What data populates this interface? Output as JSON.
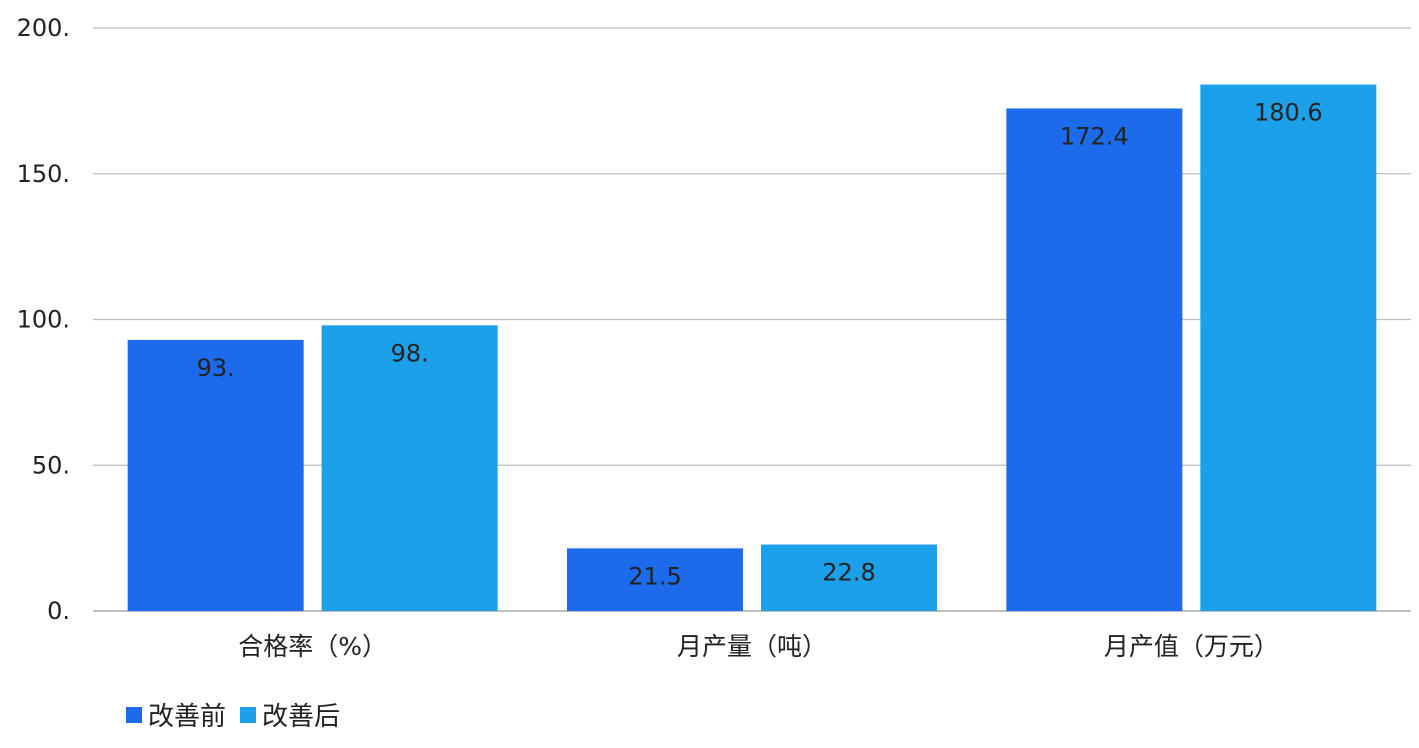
{
  "chart_data": {
    "type": "bar",
    "categories": [
      "合格率（%）",
      "月产量（吨）",
      "月产值（万元）"
    ],
    "series": [
      {
        "name": "改善前",
        "values": [
          93,
          21.5,
          172.4
        ],
        "labels": [
          "93.",
          "21.5",
          "172.4"
        ],
        "color": "#1c6beb"
      },
      {
        "name": "改善后",
        "values": [
          98,
          22.8,
          180.6
        ],
        "labels": [
          "98.",
          "22.8",
          "180.6"
        ],
        "color": "#1ca0ea"
      }
    ],
    "y_ticks": [
      {
        "value": 0,
        "label": "0."
      },
      {
        "value": 50,
        "label": "50."
      },
      {
        "value": 100,
        "label": "100."
      },
      {
        "value": 150,
        "label": "150."
      },
      {
        "value": 200,
        "label": "200."
      }
    ],
    "ylim": [
      0,
      200
    ],
    "grid": true,
    "legend_position": "bottom-left",
    "title": "",
    "xlabel": "",
    "ylabel": ""
  }
}
